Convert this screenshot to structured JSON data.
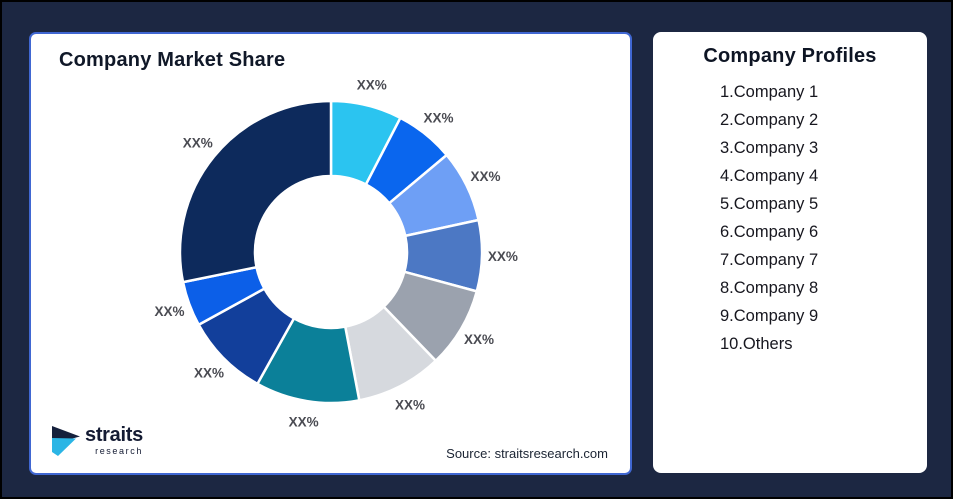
{
  "page": {
    "background_color": "#1C2742",
    "outer_border_color": "#000000"
  },
  "market_share_card": {
    "title": "Company Market Share",
    "source": "Source: straitsresearch.com",
    "accent_border_color": "#4067D2"
  },
  "logo": {
    "name": "straits",
    "subtext": "research",
    "mark_top_color": "#15203C",
    "mark_bottom_color": "#2BB5E5"
  },
  "profiles_card": {
    "title": "Company Profiles",
    "items": [
      "1.Company 1",
      "2.Company 2",
      "3.Company 3",
      "4.Company 4",
      "5.Company 5",
      "6.Company 6",
      "7.Company 7",
      "8.Company 8",
      "9.Company 9",
      "10.Others"
    ]
  },
  "chart_data": {
    "type": "pie",
    "subtype": "donut",
    "title": "Company Market Share",
    "direction": "clockwise",
    "start_angle_deg": 0,
    "label_text_color": "#4A4B52",
    "separator_color": "#FFFFFF",
    "segments": [
      {
        "label": "XX%",
        "share_pct": 7.6,
        "color": "#2BC4F0"
      },
      {
        "label": "XX%",
        "share_pct": 6.3,
        "color": "#0A66EE"
      },
      {
        "label": "XX%",
        "share_pct": 7.7,
        "color": "#6E9FF5"
      },
      {
        "label": "XX%",
        "share_pct": 7.6,
        "color": "#4C78C4"
      },
      {
        "label": "XX%",
        "share_pct": 8.6,
        "color": "#9BA2AE"
      },
      {
        "label": "XX%",
        "share_pct": 9.2,
        "color": "#D6D9DE"
      },
      {
        "label": "XX%",
        "share_pct": 11.1,
        "color": "#0B8099"
      },
      {
        "label": "XX%",
        "share_pct": 8.9,
        "color": "#123F9B"
      },
      {
        "label": "XX%",
        "share_pct": 4.8,
        "color": "#0C5FE8"
      },
      {
        "label": "XX%",
        "share_pct": 28.2,
        "color": "#0D2A5C"
      }
    ]
  }
}
